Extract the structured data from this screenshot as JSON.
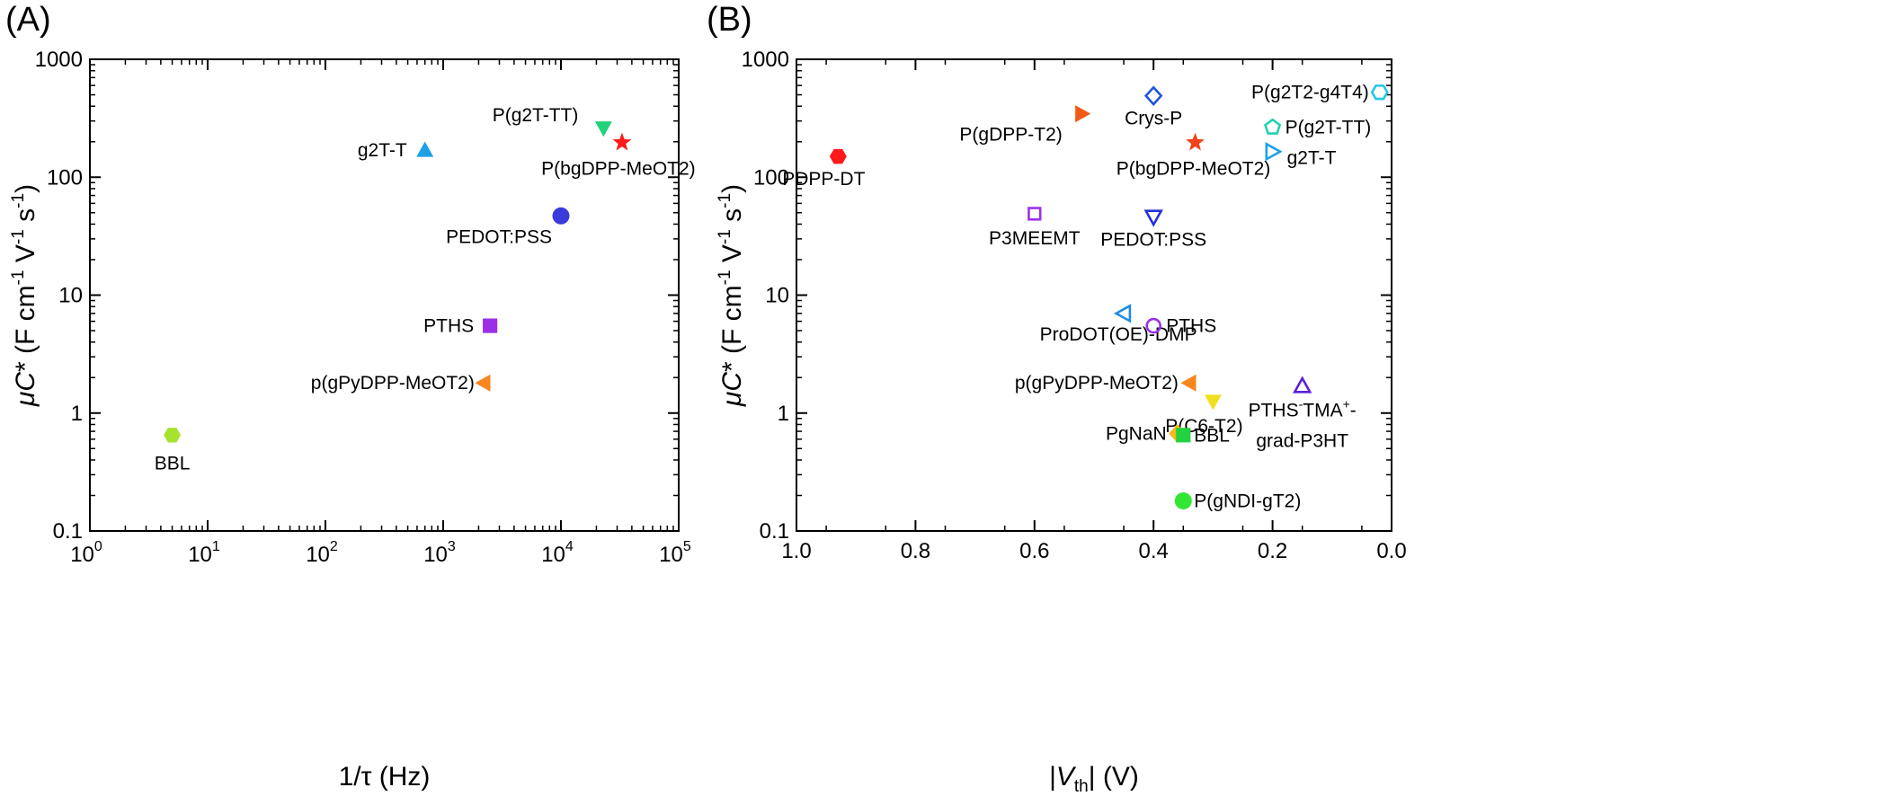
{
  "panels": [
    {
      "letter": "(A)",
      "chart_data": {
        "type": "scatter",
        "x_scale": "log",
        "y_scale": "log",
        "xlim": [
          1,
          100000
        ],
        "ylim": [
          0.1,
          1000
        ],
        "grid": false,
        "legend": "none",
        "xlabel": "1/τ (Hz)",
        "ylabel": "μC* (F cm-1 V-1 s-1)",
        "x_ticks": [
          {
            "value": 1,
            "base": "10",
            "exp": "0"
          },
          {
            "value": 10,
            "base": "10",
            "exp": "1"
          },
          {
            "value": 100,
            "base": "10",
            "exp": "2"
          },
          {
            "value": 1000,
            "base": "10",
            "exp": "3"
          },
          {
            "value": 10000,
            "base": "10",
            "exp": "4"
          },
          {
            "value": 100000,
            "base": "10",
            "exp": "5"
          }
        ],
        "y_ticks": [
          {
            "value": 0.1,
            "label": "0.1"
          },
          {
            "value": 1,
            "label": "1"
          },
          {
            "value": 10,
            "label": "10"
          },
          {
            "value": 100,
            "label": "100"
          },
          {
            "value": 1000,
            "label": "1000"
          }
        ],
        "points": [
          {
            "label": "BBL",
            "x": 5,
            "y": 0.65,
            "marker": "hexagon",
            "fill": true,
            "color": "#a6e22e"
          },
          {
            "label": "p(gPyDPP-MeOT2)",
            "x": 2200,
            "y": 1.8,
            "marker": "triangle-left",
            "fill": true,
            "color": "#f7861c"
          },
          {
            "label": "PTHS",
            "x": 2500,
            "y": 5.5,
            "marker": "square",
            "fill": true,
            "color": "#9b30e8"
          },
          {
            "label": "PEDOT:PSS",
            "x": 10000,
            "y": 47,
            "marker": "circle",
            "fill": true,
            "color": "#3b3bdb"
          },
          {
            "label": "g2T-T",
            "x": 700,
            "y": 170,
            "marker": "triangle-up",
            "fill": true,
            "color": "#1ea0e6"
          },
          {
            "label": "P(g2T-TT)",
            "x": 23000,
            "y": 260,
            "marker": "triangle-down",
            "fill": true,
            "color": "#22d27a"
          },
          {
            "label": "P(bgDPP-MeOT2)",
            "x": 33000,
            "y": 197,
            "marker": "star",
            "fill": true,
            "color": "#ff1a1a"
          }
        ]
      }
    },
    {
      "letter": "(B)",
      "chart_data": {
        "type": "scatter",
        "x_scale": "linear, reversed",
        "y_scale": "log",
        "xlim": [
          1.0,
          0.0
        ],
        "ylim": [
          0.1,
          1000
        ],
        "grid": false,
        "legend": "none",
        "xlabel": "|Vth| (V)",
        "ylabel": "μC* (F cm-1 V-1 s-1)",
        "x_ticks": [
          {
            "value": 1.0,
            "label": "1.0"
          },
          {
            "value": 0.8,
            "label": "0.8"
          },
          {
            "value": 0.6,
            "label": "0.6"
          },
          {
            "value": 0.4,
            "label": "0.4"
          },
          {
            "value": 0.2,
            "label": "0.2"
          },
          {
            "value": 0.0,
            "label": "0.0"
          }
        ],
        "y_ticks": [
          {
            "value": 0.1,
            "label": "0.1"
          },
          {
            "value": 1,
            "label": "1"
          },
          {
            "value": 10,
            "label": "10"
          },
          {
            "value": 100,
            "label": "100"
          },
          {
            "value": 1000,
            "label": "1000"
          }
        ],
        "points": [
          {
            "label": "PDPP-DT",
            "x": 0.93,
            "y": 150,
            "marker": "hexagon",
            "fill": true,
            "color": "#ff1a1a"
          },
          {
            "label": "P(gDPP-T2)",
            "x": 0.52,
            "y": 345,
            "marker": "triangle-right",
            "fill": true,
            "color": "#f05a14"
          },
          {
            "label": "Crys-P",
            "x": 0.4,
            "y": 490,
            "marker": "diamond",
            "fill": false,
            "color": "#1f55d9"
          },
          {
            "label": "P(bgDPP-MeOT2)",
            "x": 0.33,
            "y": 197,
            "marker": "star",
            "fill": true,
            "color": "#f0421a"
          },
          {
            "label": "P(g2T2-g4T4)",
            "x": 0.02,
            "y": 525,
            "marker": "hexagon",
            "fill": false,
            "color": "#24c6e6"
          },
          {
            "label": "P(g2T-TT)",
            "x": 0.2,
            "y": 265,
            "marker": "pentagon",
            "fill": false,
            "color": "#22d2b0"
          },
          {
            "label": "g2T-T",
            "x": 0.2,
            "y": 165,
            "marker": "triangle-right",
            "fill": false,
            "color": "#1ea0e6"
          },
          {
            "label": "P3MEEMT",
            "x": 0.6,
            "y": 49,
            "marker": "square",
            "fill": false,
            "color": "#9b30e8"
          },
          {
            "label": "PEDOT:PSS",
            "x": 0.4,
            "y": 46,
            "marker": "triangle-down",
            "fill": false,
            "color": "#2430d9"
          },
          {
            "label": "ProDOT(OE)-DMP",
            "x": 0.45,
            "y": 7,
            "marker": "triangle-left",
            "fill": false,
            "color": "#1e8ce6"
          },
          {
            "label": "PTHS",
            "x": 0.4,
            "y": 5.5,
            "marker": "circle",
            "fill": false,
            "color": "#9b30e8"
          },
          {
            "label": "p(gPyDPP-MeOT2)",
            "x": 0.34,
            "y": 1.8,
            "marker": "triangle-left",
            "fill": true,
            "color": "#f7861c"
          },
          {
            "label": "P(C6-T2)",
            "x": 0.3,
            "y": 1.25,
            "marker": "triangle-down",
            "fill": true,
            "color": "#f0e020"
          },
          {
            "label": "PTHS-TMA+-grad-P3HT",
            "x": 0.15,
            "y": 1.7,
            "marker": "triangle-up",
            "fill": false,
            "color": "#5a22d9"
          },
          {
            "label": "PgNaN",
            "x": 0.36,
            "y": 0.67,
            "marker": "diamond",
            "fill": true,
            "color": "#f7b81c"
          },
          {
            "label": "BBL",
            "x": 0.35,
            "y": 0.65,
            "marker": "square",
            "fill": true,
            "color": "#22d240"
          },
          {
            "label": "P(gNDI-gT2)",
            "x": 0.35,
            "y": 0.18,
            "marker": "circle",
            "fill": true,
            "color": "#33e633"
          }
        ]
      }
    }
  ]
}
